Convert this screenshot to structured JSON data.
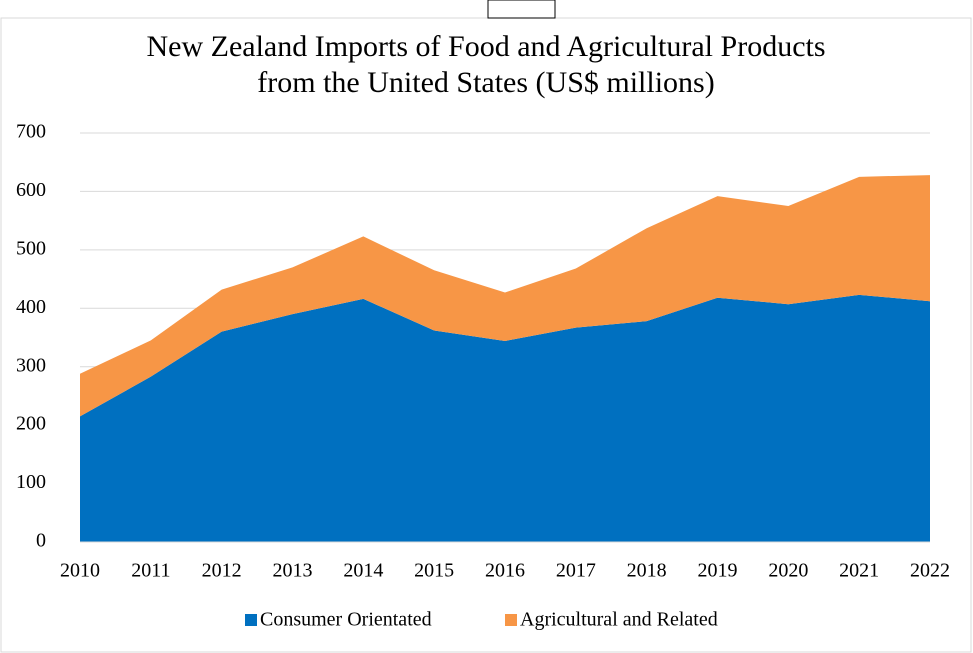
{
  "chart_data": {
    "type": "stacked_area",
    "title": [
      "New Zealand Imports of Food and Agricultural Products",
      "from the United States (US$ millions)"
    ],
    "categories": [
      "2010",
      "2011",
      "2012",
      "2013",
      "2014",
      "2015",
      "2016",
      "2017",
      "2018",
      "2019",
      "2020",
      "2021",
      "2022"
    ],
    "series": [
      {
        "name": "Consumer Orientated",
        "color": "#0070c0",
        "values": [
          215,
          283,
          360,
          390,
          416,
          362,
          344,
          367,
          378,
          418,
          407,
          423,
          412
        ]
      },
      {
        "name": "Agricultural and Related",
        "color": "#f79646",
        "values": [
          73,
          62,
          72,
          80,
          107,
          103,
          83,
          101,
          159,
          174,
          168,
          202,
          216
        ]
      }
    ],
    "ylim": [
      0,
      700
    ],
    "yticks": [
      0,
      100,
      200,
      300,
      400,
      500,
      600,
      700
    ],
    "grid": true,
    "legend": "bottom"
  }
}
